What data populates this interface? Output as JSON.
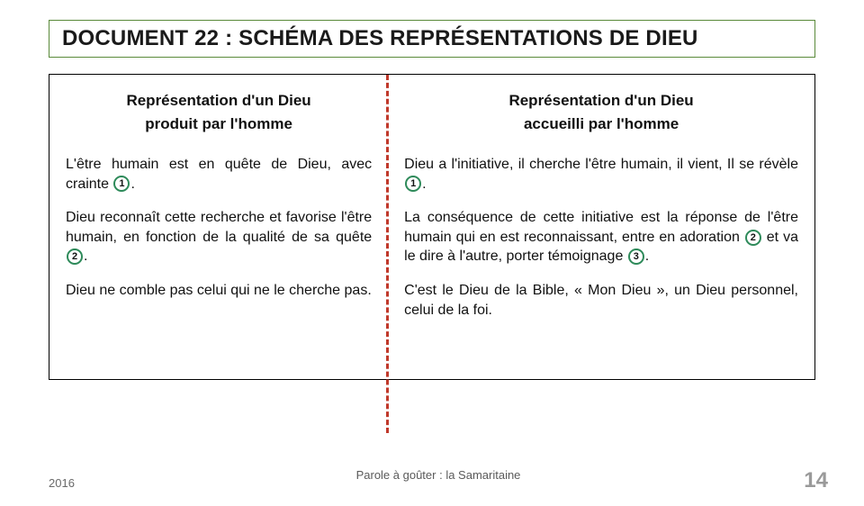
{
  "colors": {
    "title_border": "#5a8a3a",
    "divider": "#c0392b",
    "badge_border": "#2e8a5a",
    "page_number": "#9a9a9a",
    "footer_text": "#5a5a5a"
  },
  "title": "DOCUMENT 22 : SCHÉMA DES REPRÉSENTATIONS DE DIEU",
  "left": {
    "heading_line1": "Représentation d'un Dieu",
    "heading_line2": "produit par l'homme",
    "p1_a": "L'être humain est en quête de Dieu, avec crainte ",
    "p1_badge": "1",
    "p1_b": ".",
    "p2_a": "Dieu reconnaît cette recherche et favorise l'être humain, en fonction de la qualité de sa quête ",
    "p2_badge": "2",
    "p2_b": ".",
    "p3": "Dieu ne comble pas celui qui ne le cherche pas."
  },
  "right": {
    "heading_line1": "Représentation d'un Dieu",
    "heading_line2": "accueilli par l'homme",
    "p1_a": "Dieu a l'initiative, il cherche l'être humain, il vient, Il se révèle ",
    "p1_badge": "1",
    "p1_b": ".",
    "p2_a": "La conséquence de cette initiative est la réponse de l'être humain qui en est reconnaissant, entre en adoration ",
    "p2_badge1": "2",
    "p2_mid": " et va le dire à l'autre, porter témoignage ",
    "p2_badge2": "3",
    "p2_b": ".",
    "p3": "C'est le Dieu de la Bible, « Mon Dieu », un Dieu personnel, celui de la foi."
  },
  "footer": {
    "year": "2016",
    "center": "Parole à goûter : la Samaritaine",
    "page": "14"
  }
}
